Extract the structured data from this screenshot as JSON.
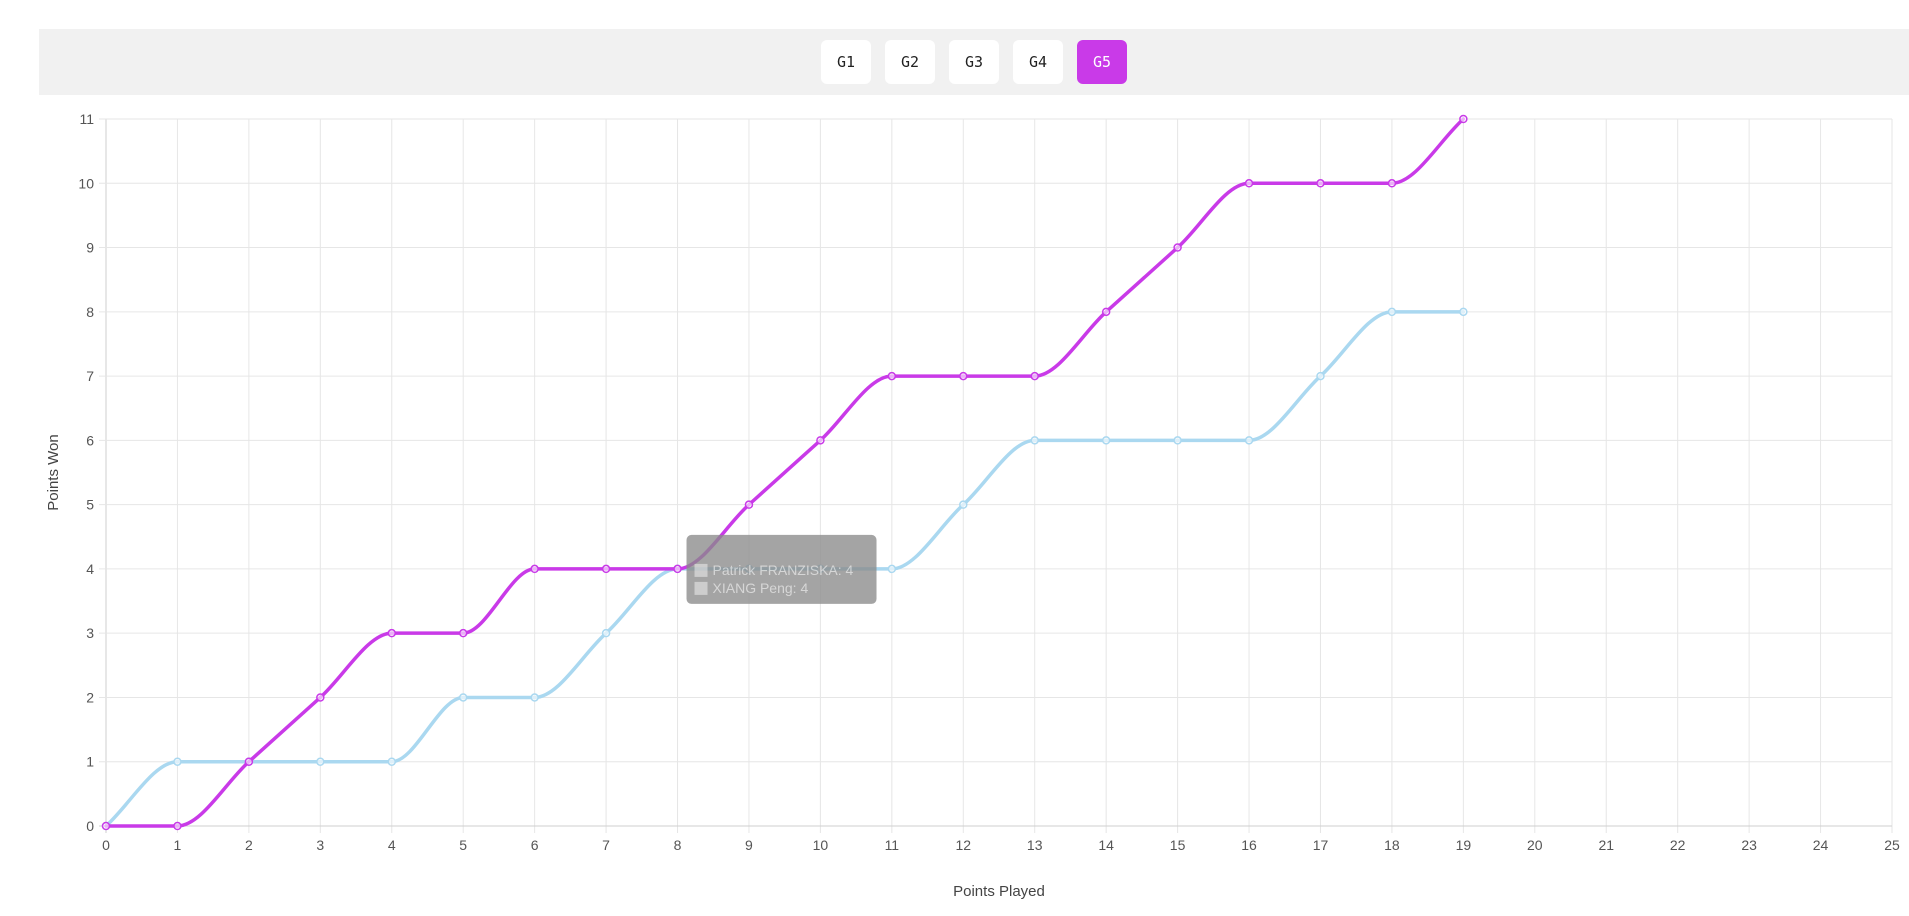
{
  "tabs": [
    {
      "label": "G1",
      "active": false
    },
    {
      "label": "G2",
      "active": false
    },
    {
      "label": "G3",
      "active": false
    },
    {
      "label": "G4",
      "active": false
    },
    {
      "label": "G5",
      "active": true
    }
  ],
  "colors": {
    "accent": "#c93ae8",
    "series_a": "#c93ae8",
    "series_b": "#aad8f0"
  },
  "chart_data": {
    "type": "line",
    "xlabel": "Points Played",
    "ylabel": "Points Won",
    "xlim": [
      0,
      25
    ],
    "ylim": [
      0,
      11
    ],
    "grid": true,
    "x": [
      0,
      1,
      2,
      3,
      4,
      5,
      6,
      7,
      8,
      9,
      10,
      11,
      12,
      13,
      14,
      15,
      16,
      17,
      18,
      19
    ],
    "series": [
      {
        "values": [
          0,
          0,
          1,
          2,
          3,
          3,
          4,
          4,
          4,
          5,
          6,
          7,
          7,
          7,
          8,
          9,
          10,
          10,
          10,
          11
        ],
        "color": "#c93ae8"
      },
      {
        "values": [
          0,
          1,
          1,
          1,
          1,
          2,
          2,
          3,
          4,
          4,
          4,
          4,
          5,
          6,
          6,
          6,
          6,
          7,
          8,
          8
        ],
        "color": "#aad8f0"
      }
    ],
    "tooltip": {
      "lines": [
        "Patrick FRANZISKA: 4",
        "XIANG Peng: 4"
      ]
    }
  }
}
